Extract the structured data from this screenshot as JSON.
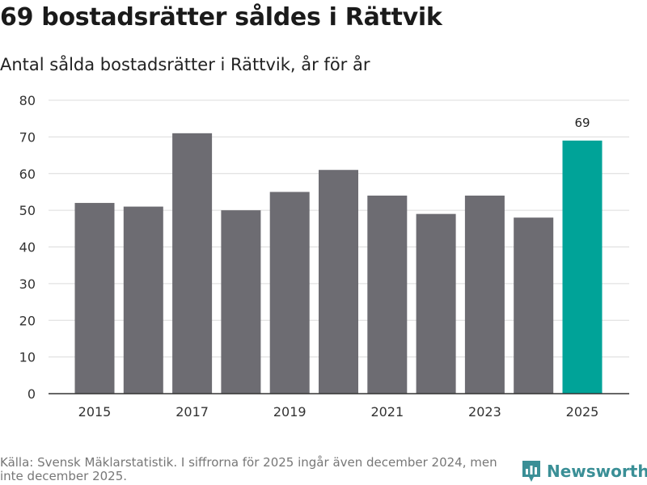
{
  "title": "69 bostadsrätter såldes i Rättvik",
  "subtitle": "Antal sålda bostadsrätter i Rättvik, år för år",
  "footer": "Källa: Svensk Mäklarstatistik. I siffrorna för 2025 ingår även december 2024, men inte december 2025.",
  "brand": {
    "name": "Newsworthy",
    "icon": "newsworthy-logo-icon"
  },
  "colors": {
    "bar": "#6d6c72",
    "highlight": "#00a398",
    "grid": "#dcdcdc",
    "axis": "#333333",
    "text": "#333333",
    "brand": "#3a8f96"
  },
  "chart_data": {
    "type": "bar",
    "categories": [
      "2015",
      "2016",
      "2017",
      "2018",
      "2019",
      "2020",
      "2021",
      "2022",
      "2023",
      "2024",
      "2025"
    ],
    "values": [
      52,
      51,
      71,
      50,
      55,
      61,
      54,
      49,
      54,
      48,
      69
    ],
    "x_tick_labels": [
      "2015",
      "",
      "2017",
      "",
      "2019",
      "",
      "2021",
      "",
      "2023",
      "",
      "2025"
    ],
    "highlight_index": 10,
    "data_labels": [
      {
        "index": 10,
        "text": "69"
      }
    ],
    "yticks": [
      0,
      10,
      20,
      30,
      40,
      50,
      60,
      70,
      80
    ],
    "ylim": [
      0,
      80
    ],
    "xlabel": "",
    "ylabel": "",
    "grid": true
  }
}
